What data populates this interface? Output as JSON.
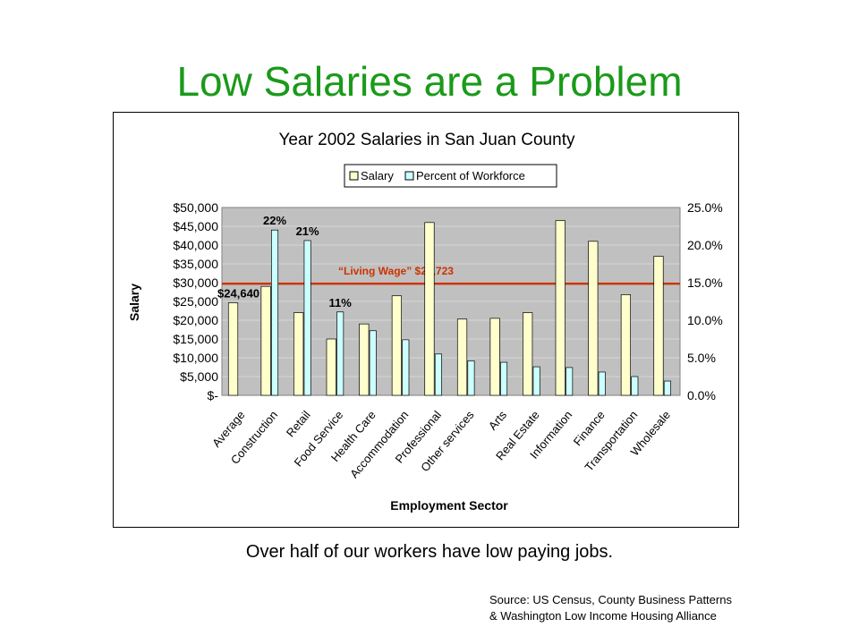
{
  "title": "Low Salaries are a Problem",
  "caption": "Over half of our workers have low paying jobs.",
  "source": {
    "line1": "Source:  US Census, County Business Patterns",
    "line2": "& Washington Low Income Housing Alliance"
  },
  "chart_data": {
    "type": "bar",
    "title": "Year 2002 Salaries in San Juan County",
    "xlabel": "Employment Sector",
    "ylabel": "Salary",
    "categories": [
      "Average",
      "Construction",
      "Retail",
      "Food Service",
      "Health Care",
      "Accommodation",
      "Professional",
      "Other services",
      "Arts",
      "Real Estate",
      "Information",
      "Finance",
      "Transportation",
      "Wholesale"
    ],
    "series": [
      {
        "name": "Salary",
        "axis": "left",
        "color": "#ffffcc",
        "values": [
          24640,
          29000,
          22000,
          15000,
          19000,
          26500,
          46000,
          20300,
          20500,
          22000,
          46500,
          41000,
          26800,
          37000
        ]
      },
      {
        "name": "Percent of Workforce",
        "axis": "right",
        "color": "#ccffff",
        "values": [
          null,
          22,
          20.6,
          11.1,
          8.6,
          7.4,
          5.5,
          4.6,
          4.4,
          3.8,
          3.7,
          3.1,
          2.5,
          1.9
        ]
      }
    ],
    "ylim": [
      0,
      50000
    ],
    "ylim_right": [
      0,
      25
    ],
    "yticks": [
      "$-",
      "$5,000",
      "$10,000",
      "$15,000",
      "$20,000",
      "$25,000",
      "$30,000",
      "$35,000",
      "$40,000",
      "$45,000",
      "$50,000"
    ],
    "yticks_right": [
      "0.0%",
      "5.0%",
      "10.0%",
      "15.0%",
      "20.0%",
      "25.0%"
    ],
    "reference_line": {
      "label": "“Living Wage” $29,723",
      "value": 29723,
      "color": "#cc3300"
    },
    "annotations": [
      {
        "text": "$24,640",
        "category": "Average",
        "series": "Salary"
      },
      {
        "text": "22%",
        "category": "Construction",
        "series": "Percent of Workforce"
      },
      {
        "text": "21%",
        "category": "Retail",
        "series": "Percent of Workforce"
      },
      {
        "text": "11%",
        "category": "Food Service",
        "series": "Percent of Workforce"
      }
    ],
    "legend_position": "top",
    "plot_background": "#c0c0c0",
    "grid": true
  }
}
